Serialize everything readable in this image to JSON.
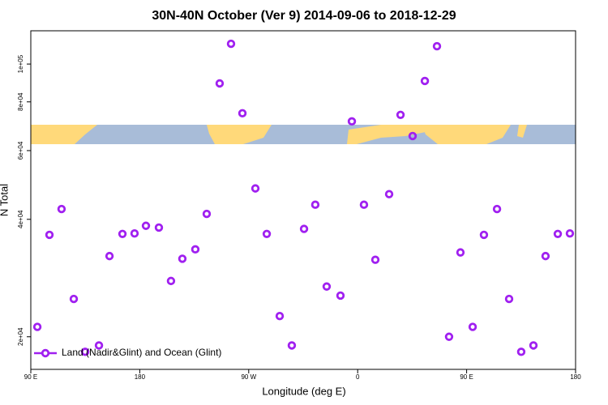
{
  "chart_data": {
    "type": "scatter",
    "title": "30N-40N October (Ver 9)   2014-09-06 to 2018-12-29",
    "x_label": "Longitude (deg E)",
    "y_label": "N Total",
    "log_y": true,
    "legend": "bottom-left",
    "xlim": [
      90,
      540
    ],
    "xticks": [
      {
        "value": 90,
        "label": "90 E"
      },
      180,
      {
        "value": 270,
        "label": "90 W"
      },
      {
        "value": 360,
        "label": "0"
      },
      {
        "value": 450,
        "label": "90 E"
      },
      {
        "value": 540,
        "label": "180"
      }
    ],
    "ylim": [
      16500,
      121700
    ],
    "yticks": [
      {
        "value": 20000,
        "label": "2e+04"
      },
      {
        "value": 40000,
        "label": "4e+04"
      },
      {
        "value": 60000,
        "label": "6e+04"
      },
      {
        "value": 80000,
        "label": "8e+04"
      },
      {
        "value": 100000,
        "label": "1e+05"
      }
    ],
    "series": [
      {
        "name": "Land (Nadir&Glint) and Ocean (Glint)",
        "color": "#a020f0",
        "x": [
          95.4,
          105.4,
          115.4,
          125.5,
          134.9,
          146.3,
          155,
          165.7,
          175.7,
          185.1,
          195.8,
          205.8,
          215.2,
          225.9,
          235.3,
          246,
          255.4,
          264.8,
          275.5,
          284.9,
          295.6,
          305.6,
          315.7,
          325,
          334.4,
          345.8,
          355.2,
          365.2,
          374.6,
          386,
          395.4,
          405.4,
          415.5,
          425.5,
          435.5,
          444.9,
          455,
          464.3,
          475.1,
          485.1,
          495.1,
          505.2,
          515.2,
          525.3,
          535.3
        ],
        "values": [
          21200,
          36500,
          42500,
          25000,
          18300,
          19000,
          32200,
          36700,
          36800,
          38500,
          38100,
          27800,
          31700,
          33500,
          41300,
          89200,
          112700,
          74800,
          48000,
          36700,
          22600,
          19000,
          37800,
          43600,
          26900,
          25500,
          71300,
          43600,
          31500,
          46400,
          74100,
          65400,
          90500,
          111100,
          20000,
          32900,
          21200,
          36500,
          42500,
          25000,
          18300,
          19000,
          32200,
          36700,
          36800
        ]
      }
    ]
  }
}
